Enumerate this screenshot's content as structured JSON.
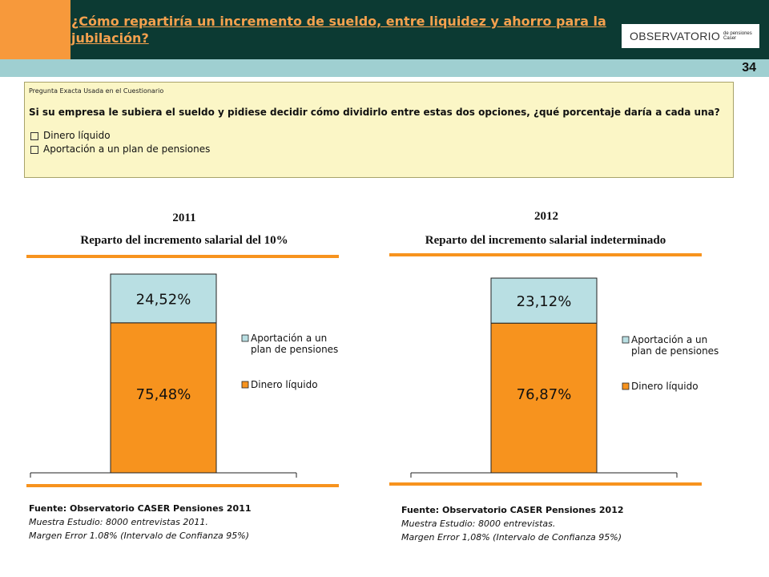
{
  "header": {
    "title": "¿Cómo repartiría un incremento de sueldo, entre liquidez y ahorro para la jubilación?",
    "page_number": "34",
    "logo_main": "OBSERVATORIO",
    "logo_sub1": "de pensiones",
    "logo_sub2": "Caser"
  },
  "question": {
    "label": "Pregunta Exacta Usada en el Cuestionario",
    "text": "Si su empresa le subiera el sueldo y pidiese decidir cómo dividirlo entre estas dos opciones, ¿qué porcentaje daría a cada una?",
    "options": [
      "Dinero líquido",
      "Aportación a un plan de pensiones"
    ]
  },
  "colors": {
    "accent_orange": "#f7931e",
    "header_dark": "#0c3a33",
    "teal": "#9fcfd1",
    "pension_color": "#b9dfe3",
    "liquid_color": "#f7931e"
  },
  "chart_data": [
    {
      "type": "bar",
      "stacked": true,
      "year": "2011",
      "title": "Reparto del incremento salarial del 10%",
      "series": [
        {
          "name": "Dinero líquido",
          "values": [
            75.48
          ],
          "label": "75,48%"
        },
        {
          "name": "Aportación a un plan de pensiones",
          "values": [
            24.52
          ],
          "label": "24,52%"
        }
      ],
      "legend": [
        "Aportación a un plan de pensiones",
        "Dinero líquido"
      ],
      "ylim": [
        0,
        100
      ],
      "source": {
        "title": "Fuente: Observatorio CASER Pensiones 2011",
        "sample": "Muestra Estudio: 8000 entrevistas 2011.",
        "margin": "Margen Error 1.08% (Intervalo de Confianza 95%)"
      }
    },
    {
      "type": "bar",
      "stacked": true,
      "year": "2012",
      "title": "Reparto del incremento salarial indeterminado",
      "series": [
        {
          "name": "Dinero líquido",
          "values": [
            76.87
          ],
          "label": "76,87%"
        },
        {
          "name": "Aportación a un plan de pensiones",
          "values": [
            23.12
          ],
          "label": "23,12%"
        }
      ],
      "legend": [
        "Aportación a un plan de pensiones",
        "Dinero líquido"
      ],
      "ylim": [
        0,
        100
      ],
      "source": {
        "title": "Fuente: Observatorio CASER Pensiones 2012",
        "sample": "Muestra Estudio: 8000 entrevistas.",
        "margin": "Margen Error 1,08% (Intervalo de Confianza 95%)"
      }
    }
  ]
}
